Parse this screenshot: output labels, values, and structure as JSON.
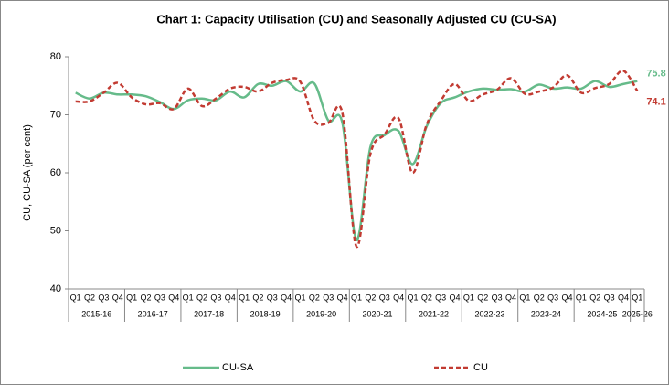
{
  "chart_data": {
    "type": "line",
    "title": "Chart 1: Capacity Utilisation (CU) and Seasonally Adjusted CU (CU-SA)",
    "y_label": "CU, CU-SA (per cent)",
    "categories": [
      "Q1",
      "Q2",
      "Q3",
      "Q4",
      "Q1",
      "Q2",
      "Q3",
      "Q4",
      "Q1",
      "Q2",
      "Q3",
      "Q4",
      "Q1",
      "Q2",
      "Q3",
      "Q4",
      "Q1",
      "Q2",
      "Q3",
      "Q4",
      "Q1",
      "Q2",
      "Q3",
      "Q4",
      "Q1",
      "Q2",
      "Q3",
      "Q4",
      "Q1",
      "Q2",
      "Q3",
      "Q4",
      "Q1",
      "Q2",
      "Q3",
      "Q4",
      "Q1",
      "Q2",
      "Q3",
      "Q4",
      "Q1"
    ],
    "years": [
      "2015-16",
      "2016-17",
      "2017-18",
      "2018-19",
      "2019-20",
      "2020-21",
      "2021-22",
      "2022-23",
      "2023-24",
      "2024-25",
      "2025-26"
    ],
    "series": [
      {
        "name": "CU-SA",
        "color": "#66bb8a",
        "dashed": false,
        "values": [
          73.8,
          72.8,
          73.8,
          73.5,
          73.5,
          73.2,
          72.2,
          71.0,
          72.5,
          72.8,
          72.5,
          74.0,
          73.0,
          75.3,
          75.0,
          75.8,
          74.0,
          75.4,
          69.0,
          68.6,
          48.5,
          64.5,
          66.5,
          67.2,
          61.5,
          68.0,
          72.0,
          73.0,
          74.0,
          74.5,
          74.3,
          74.4,
          74.0,
          75.2,
          74.5,
          74.7,
          74.5,
          75.8,
          74.8,
          75.3,
          75.8
        ]
      },
      {
        "name": "CU",
        "color": "#c23b32",
        "dashed": true,
        "values": [
          72.3,
          72.3,
          73.8,
          75.5,
          73.0,
          71.8,
          72.0,
          71.0,
          74.5,
          71.5,
          72.8,
          74.5,
          74.8,
          74.0,
          75.5,
          76.0,
          75.7,
          69.0,
          68.6,
          70.3,
          47.3,
          63.3,
          66.6,
          69.4,
          60.0,
          68.3,
          72.4,
          75.3,
          72.4,
          73.5,
          74.3,
          76.3,
          73.6,
          74.0,
          74.7,
          76.8,
          73.8,
          74.6,
          75.3,
          77.6,
          74.1
        ]
      }
    ],
    "ylim": [
      40,
      80
    ],
    "yticks": [
      40,
      50,
      60,
      70,
      80
    ],
    "grid": false
  }
}
